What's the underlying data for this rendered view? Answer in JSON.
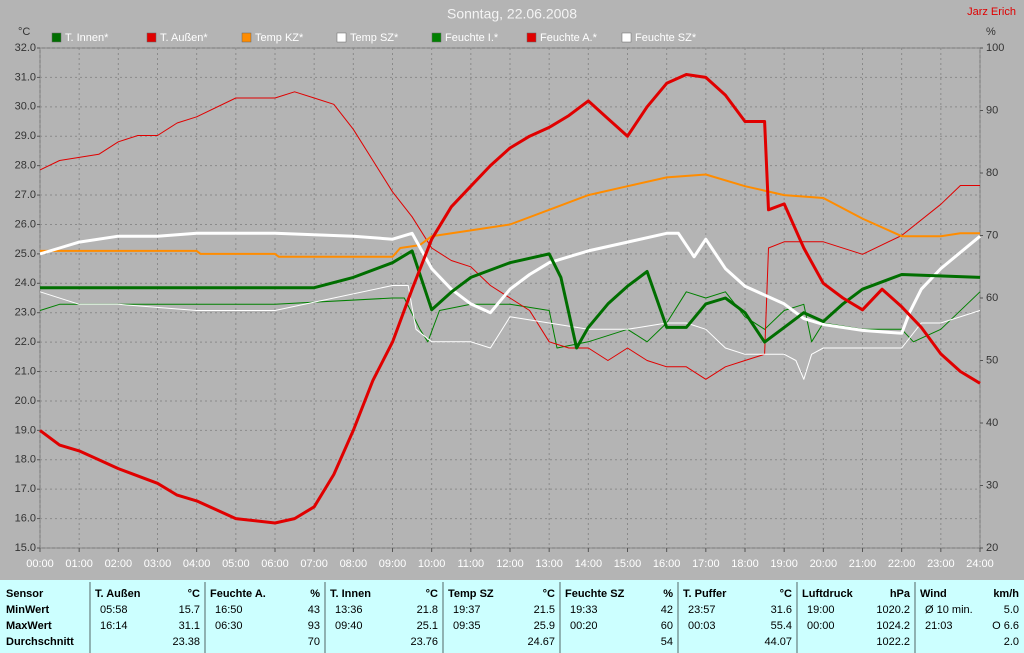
{
  "chart_data": {
    "type": "line",
    "title": "Sonntag, 22.06.2008",
    "annotation": "Jarz Erich",
    "ylabel": "°C",
    "y2label": "%",
    "xlim": [
      0,
      24
    ],
    "xticks": [
      {
        "value": 0,
        "label": "00:00"
      },
      {
        "value": 1,
        "label": "01:00"
      },
      {
        "value": 2,
        "label": "02:00"
      },
      {
        "value": 3,
        "label": "03:00"
      },
      {
        "value": 4,
        "label": "04:00"
      },
      {
        "value": 5,
        "label": "05:00"
      },
      {
        "value": 6,
        "label": "06:00"
      },
      {
        "value": 7,
        "label": "07:00"
      },
      {
        "value": 8,
        "label": "08:00"
      },
      {
        "value": 9,
        "label": "09:00"
      },
      {
        "value": 10,
        "label": "10:00"
      },
      {
        "value": 11,
        "label": "11:00"
      },
      {
        "value": 12,
        "label": "12:00"
      },
      {
        "value": 13,
        "label": "13:00"
      },
      {
        "value": 14,
        "label": "14:00"
      },
      {
        "value": 15,
        "label": "15:00"
      },
      {
        "value": 16,
        "label": "16:00"
      },
      {
        "value": 17,
        "label": "17:00"
      },
      {
        "value": 18,
        "label": "18:00"
      },
      {
        "value": 19,
        "label": "19:00"
      },
      {
        "value": 20,
        "label": "20:00"
      },
      {
        "value": 21,
        "label": "21:00"
      },
      {
        "value": 22,
        "label": "22:00"
      },
      {
        "value": 23,
        "label": "23:00"
      },
      {
        "value": 24,
        "label": "24:00"
      }
    ],
    "ylim": [
      15,
      32
    ],
    "yticks": [
      {
        "value": 15,
        "label": "15.0"
      },
      {
        "value": 16,
        "label": "16.0"
      },
      {
        "value": 17,
        "label": "17.0"
      },
      {
        "value": 18,
        "label": "18.0"
      },
      {
        "value": 19,
        "label": "19.0"
      },
      {
        "value": 20,
        "label": "20.0"
      },
      {
        "value": 21,
        "label": "21.0"
      },
      {
        "value": 22,
        "label": "22.0"
      },
      {
        "value": 23,
        "label": "23.0"
      },
      {
        "value": 24,
        "label": "24.0"
      },
      {
        "value": 25,
        "label": "25.0"
      },
      {
        "value": 26,
        "label": "26.0"
      },
      {
        "value": 27,
        "label": "27.0"
      },
      {
        "value": 28,
        "label": "28.0"
      },
      {
        "value": 29,
        "label": "29.0"
      },
      {
        "value": 30,
        "label": "30.0"
      },
      {
        "value": 31,
        "label": "31.0"
      },
      {
        "value": 32,
        "label": "32.0"
      }
    ],
    "y2lim": [
      20,
      100
    ],
    "y2ticks": [
      20,
      30,
      40,
      50,
      60,
      70,
      80,
      90,
      100
    ],
    "grid": true,
    "series": [
      {
        "name": "T. Innen*",
        "color": "#006e00",
        "line_width": 3,
        "x": [
          0,
          7,
          8,
          9,
          9.5,
          10,
          10.5,
          11,
          12,
          13,
          13.3,
          13.7,
          14,
          14.5,
          15,
          15.5,
          16,
          16.5,
          17,
          17.5,
          18,
          18.5,
          19,
          19.5,
          20,
          20.5,
          21,
          22,
          24
        ],
        "values": [
          23.85,
          23.85,
          24.2,
          24.7,
          25.1,
          23.1,
          23.7,
          24.2,
          24.7,
          25.0,
          24.2,
          21.8,
          22.5,
          23.3,
          23.9,
          24.4,
          22.5,
          22.5,
          23.3,
          23.5,
          23.0,
          22.0,
          22.5,
          23.0,
          22.7,
          23.3,
          23.8,
          24.3,
          24.2
        ]
      },
      {
        "name": "T. Außen*",
        "color": "#e00000",
        "line_width": 3,
        "x": [
          0,
          0.5,
          1,
          1.5,
          2,
          3,
          3.5,
          4,
          4.5,
          5,
          6,
          6.5,
          7,
          7.5,
          8,
          8.5,
          9,
          9.5,
          10,
          10.5,
          11,
          11.5,
          12,
          12.5,
          13,
          13.5,
          14,
          14.5,
          15,
          15.5,
          16,
          16.5,
          17,
          17.5,
          18,
          18.5,
          18.6,
          19,
          19.5,
          20,
          20.5,
          21,
          21.5,
          22,
          22.5,
          23,
          23.5,
          24
        ],
        "values": [
          19.0,
          18.5,
          18.3,
          18.0,
          17.7,
          17.2,
          16.8,
          16.6,
          16.3,
          16.0,
          15.85,
          16.0,
          16.4,
          17.5,
          19.0,
          20.7,
          22.0,
          23.8,
          25.5,
          26.6,
          27.3,
          28.0,
          28.6,
          29.0,
          29.3,
          29.7,
          30.2,
          29.6,
          29.0,
          30.0,
          30.8,
          31.1,
          31.0,
          30.4,
          29.5,
          29.5,
          26.5,
          26.7,
          25.2,
          24.0,
          23.5,
          23.1,
          23.8,
          23.2,
          22.5,
          21.6,
          21.0,
          20.6
        ]
      },
      {
        "name": "Temp KZ*",
        "color": "#ff8c00",
        "line_width": 2,
        "x": [
          0,
          4,
          4.1,
          6,
          6.1,
          9,
          9.2,
          9.7,
          10,
          11,
          12,
          13,
          14,
          15,
          16,
          17,
          18,
          19,
          20,
          21,
          22,
          23,
          23.5,
          24
        ],
        "values": [
          25.1,
          25.1,
          25.0,
          25.0,
          24.9,
          24.9,
          25.2,
          25.3,
          25.6,
          25.8,
          26.0,
          26.5,
          27.0,
          27.3,
          27.6,
          27.7,
          27.3,
          27.0,
          26.9,
          26.2,
          25.6,
          25.6,
          25.7,
          25.7
        ]
      },
      {
        "name": "Temp SZ*",
        "color": "#ffffff",
        "line_width": 3,
        "x": [
          0,
          0.5,
          1,
          2,
          3,
          4,
          6,
          8,
          9,
          9.5,
          10,
          10.5,
          11,
          11.5,
          12,
          12.5,
          13,
          14,
          15,
          16,
          16.3,
          16.7,
          17,
          17.5,
          18,
          19,
          19.5,
          20,
          21,
          22,
          22.2,
          22.5,
          23,
          24
        ],
        "values": [
          25.0,
          25.2,
          25.4,
          25.6,
          25.6,
          25.7,
          25.7,
          25.6,
          25.5,
          25.7,
          24.5,
          23.8,
          23.3,
          23.0,
          23.8,
          24.3,
          24.7,
          25.1,
          25.4,
          25.7,
          25.7,
          24.9,
          25.5,
          24.5,
          23.9,
          23.3,
          22.8,
          22.6,
          22.4,
          22.3,
          23.0,
          23.8,
          24.5,
          25.6
        ]
      },
      {
        "name": "Feuchte I.*",
        "color": "#008000",
        "line_width": 1,
        "axis": "y2",
        "x": [
          0,
          0.5,
          4,
          6,
          9,
          9.3,
          9.7,
          9.9,
          10.2,
          11,
          12,
          13,
          13.2,
          14,
          15,
          15.5,
          16,
          16.5,
          17,
          17.5,
          18,
          18.5,
          19,
          19.5,
          19.7,
          20,
          21,
          22,
          22.3,
          23,
          24
        ],
        "values": [
          58,
          59,
          59,
          59,
          60,
          60,
          55,
          53,
          58,
          59,
          59,
          58,
          52,
          53,
          55,
          53,
          56,
          61,
          60,
          61,
          57,
          55,
          58,
          59,
          53,
          56,
          55,
          55,
          53,
          55,
          61
        ]
      },
      {
        "name": "Feuchte A.*",
        "color": "#e00000",
        "line_width": 1,
        "axis": "y2",
        "x": [
          0,
          0.5,
          1.5,
          2,
          2.5,
          3,
          3.5,
          4,
          5,
          6,
          6.5,
          7,
          7.5,
          8,
          8.5,
          9,
          9.5,
          10,
          10.5,
          11,
          11.5,
          12,
          12.5,
          13,
          13.5,
          14,
          14.5,
          15,
          15.5,
          16,
          16.5,
          17,
          17.5,
          18,
          18.5,
          18.6,
          19,
          19.5,
          20,
          21,
          22,
          23,
          23.5,
          24
        ],
        "values": [
          80.5,
          82,
          83,
          85,
          86,
          86,
          88,
          89,
          92,
          92,
          93,
          92,
          91,
          87,
          82,
          77,
          73,
          68,
          66,
          65,
          62,
          60,
          58,
          53,
          52,
          52,
          50,
          52,
          50,
          49,
          49,
          47,
          49,
          50,
          51,
          68,
          69,
          69,
          69,
          67,
          70,
          75,
          78,
          78
        ]
      },
      {
        "name": "Feuchte SZ*",
        "color": "#ffffff",
        "line_width": 1,
        "axis": "y2",
        "x": [
          0,
          1,
          2,
          4,
          6,
          9,
          9.4,
          9.6,
          10,
          11,
          11.5,
          12,
          13,
          14,
          15,
          16,
          16.5,
          17,
          17.5,
          18,
          19,
          19.3,
          19.5,
          19.7,
          20,
          21,
          22,
          22.5,
          23,
          24
        ],
        "values": [
          61,
          59,
          59,
          58,
          58,
          62,
          62,
          55,
          53,
          53,
          52,
          57,
          56,
          55,
          55,
          56,
          56,
          55,
          52,
          51,
          51,
          50,
          47,
          51,
          52,
          52,
          52,
          56,
          56,
          58
        ]
      }
    ]
  },
  "table": {
    "sensor_label": "Sensor",
    "row_labels": [
      "MinWert",
      "MaxWert",
      "Durchschnitt"
    ],
    "columns": [
      {
        "name": "T. Außen",
        "unit": "°C",
        "cells": [
          {
            "time": "05:58",
            "value": "15.7"
          },
          {
            "time": "16:14",
            "value": "31.1"
          },
          {
            "value": "23.38"
          }
        ]
      },
      {
        "name": "Feuchte A.",
        "unit": "%",
        "cells": [
          {
            "time": "16:50",
            "value": "43"
          },
          {
            "time": "06:30",
            "value": "93"
          },
          {
            "value": "70"
          }
        ]
      },
      {
        "name": "T. Innen",
        "unit": "°C",
        "cells": [
          {
            "time": "13:36",
            "value": "21.8"
          },
          {
            "time": "09:40",
            "value": "25.1"
          },
          {
            "value": "23.76"
          }
        ]
      },
      {
        "name": "Temp SZ",
        "unit": "°C",
        "cells": [
          {
            "time": "19:37",
            "value": "21.5"
          },
          {
            "time": "09:35",
            "value": "25.9"
          },
          {
            "value": "24.67"
          }
        ]
      },
      {
        "name": "Feuchte SZ",
        "unit": "%",
        "cells": [
          {
            "time": "19:33",
            "value": "42"
          },
          {
            "time": "00:20",
            "value": "60"
          },
          {
            "value": "54"
          }
        ]
      },
      {
        "name": "T. Puffer",
        "unit": "°C",
        "cells": [
          {
            "time": "23:57",
            "value": "31.6"
          },
          {
            "time": "00:03",
            "value": "55.4"
          },
          {
            "value": "44.07"
          }
        ]
      },
      {
        "name": "Luftdruck",
        "unit": "hPa",
        "cells": [
          {
            "time": "19:00",
            "value": "1020.2"
          },
          {
            "time": "00:00",
            "value": "1024.2"
          },
          {
            "value": "1022.2"
          }
        ]
      },
      {
        "name": "Wind",
        "unit": "km/h",
        "cells": [
          {
            "time": "Ø 10 min.",
            "value": "5.0"
          },
          {
            "time": "21:03",
            "value": "O 6.6"
          },
          {
            "value": "2.0"
          }
        ]
      }
    ]
  }
}
